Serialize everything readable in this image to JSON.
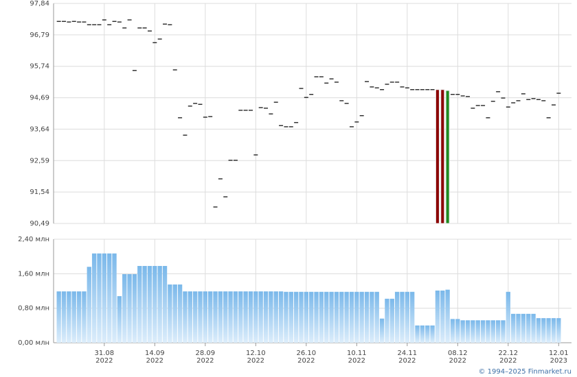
{
  "chart_data": {
    "type": "stock",
    "categories": [
      null,
      null,
      null,
      null,
      null,
      null,
      null,
      null,
      null,
      [
        "31.08",
        "2022"
      ],
      null,
      null,
      null,
      null,
      null,
      null,
      null,
      null,
      null,
      [
        "14.09",
        "2022"
      ],
      null,
      null,
      null,
      null,
      null,
      null,
      null,
      null,
      null,
      [
        "28.09",
        "2022"
      ],
      null,
      null,
      null,
      null,
      null,
      null,
      null,
      null,
      null,
      [
        "12.10",
        "2022"
      ],
      null,
      null,
      null,
      null,
      null,
      null,
      null,
      null,
      null,
      [
        "26.10",
        "2022"
      ],
      null,
      null,
      null,
      null,
      null,
      null,
      null,
      null,
      null,
      [
        "10.11",
        "2022"
      ],
      null,
      null,
      null,
      null,
      null,
      null,
      null,
      null,
      null,
      [
        "24.11",
        "2022"
      ],
      null,
      null,
      null,
      null,
      null,
      null,
      null,
      null,
      null,
      [
        "08.12",
        "2022"
      ],
      null,
      null,
      null,
      null,
      null,
      null,
      null,
      null,
      null,
      [
        "22.12",
        "2022"
      ],
      null,
      null,
      null,
      null,
      null,
      null,
      null,
      null,
      null,
      [
        "12.01",
        "2023"
      ]
    ],
    "price": {
      "color": "#000000",
      "up_color": "#1f8a1f",
      "down_color": "#8b0000",
      "ylim": [
        90.49,
        97.84
      ],
      "yticks": [
        {
          "value": 90.49,
          "label": "90,49"
        },
        {
          "value": 91.54,
          "label": "91,54"
        },
        {
          "value": 92.59,
          "label": "92,59"
        },
        {
          "value": 93.64,
          "label": "93,64"
        },
        {
          "value": 94.69,
          "label": "94,69"
        },
        {
          "value": 95.74,
          "label": "95,74"
        },
        {
          "value": 96.79,
          "label": "96,79"
        },
        {
          "value": 97.84,
          "label": "97,84"
        }
      ],
      "values": [
        97.24,
        97.24,
        97.22,
        97.24,
        97.22,
        97.22,
        97.13,
        97.13,
        97.13,
        97.29,
        97.13,
        97.24,
        97.22,
        97.02,
        97.29,
        95.6,
        97.02,
        97.02,
        96.92,
        96.53,
        96.65,
        97.15,
        97.13,
        95.62,
        94.02,
        93.44,
        94.41,
        94.5,
        94.47,
        94.04,
        94.06,
        91.04,
        91.98,
        91.38,
        92.6,
        92.6,
        94.27,
        94.27,
        94.27,
        92.78,
        94.36,
        94.34,
        94.15,
        94.54,
        93.76,
        93.72,
        93.72,
        93.86,
        95.0,
        94.7,
        94.8,
        95.39,
        95.39,
        95.18,
        95.32,
        95.21,
        94.59,
        94.5,
        93.72,
        93.88,
        94.09,
        95.23,
        95.05,
        95.02,
        94.96,
        95.14,
        95.21,
        95.21,
        95.05,
        95.02,
        94.96,
        94.96,
        94.96,
        94.96,
        94.96,
        null,
        null,
        null,
        94.8,
        94.8,
        94.75,
        94.73,
        94.34,
        94.43,
        94.43,
        94.02,
        94.57,
        94.89,
        94.68,
        94.38,
        94.52,
        94.59,
        94.82,
        94.63,
        94.66,
        94.63,
        94.59,
        94.02,
        94.45,
        94.84
      ],
      "candles": [
        {
          "x": 75,
          "open": 94.96,
          "close": 90.49
        },
        {
          "x": 76,
          "open": 94.96,
          "close": 90.49
        },
        {
          "x": 77,
          "open": 90.49,
          "close": 94.93
        }
      ]
    },
    "volume": {
      "color": "#7ab8ea",
      "ylim": [
        0,
        2.4
      ],
      "yticks": [
        {
          "value": 0,
          "label": "0,00 млн"
        },
        {
          "value": 0.8,
          "label": "0,80 млн"
        },
        {
          "value": 1.6,
          "label": "1,60 млн"
        },
        {
          "value": 2.4,
          "label": "2,40 млн"
        }
      ],
      "values": [
        1.19,
        1.19,
        1.19,
        1.19,
        1.19,
        1.19,
        1.76,
        2.07,
        2.07,
        2.07,
        2.07,
        2.07,
        1.08,
        1.59,
        1.59,
        1.59,
        1.78,
        1.78,
        1.78,
        1.78,
        1.78,
        1.78,
        1.35,
        1.35,
        1.35,
        1.19,
        1.19,
        1.19,
        1.19,
        1.19,
        1.19,
        1.19,
        1.19,
        1.19,
        1.19,
        1.19,
        1.19,
        1.19,
        1.19,
        1.19,
        1.19,
        1.19,
        1.19,
        1.19,
        1.19,
        1.18,
        1.18,
        1.18,
        1.18,
        1.18,
        1.18,
        1.18,
        1.18,
        1.18,
        1.18,
        1.18,
        1.18,
        1.18,
        1.18,
        1.18,
        1.18,
        1.18,
        1.18,
        1.18,
        0.56,
        1.02,
        1.02,
        1.18,
        1.18,
        1.18,
        1.18,
        0.4,
        0.4,
        0.4,
        0.4,
        1.21,
        1.21,
        1.23,
        0.55,
        0.55,
        0.52,
        0.52,
        0.52,
        0.52,
        0.52,
        0.52,
        0.52,
        0.52,
        0.52,
        1.18,
        0.67,
        0.67,
        0.67,
        0.67,
        0.67,
        0.57,
        0.57,
        0.57,
        0.57,
        0.57
      ]
    },
    "footer": "© 1994–2025 Finmarket.ru"
  }
}
